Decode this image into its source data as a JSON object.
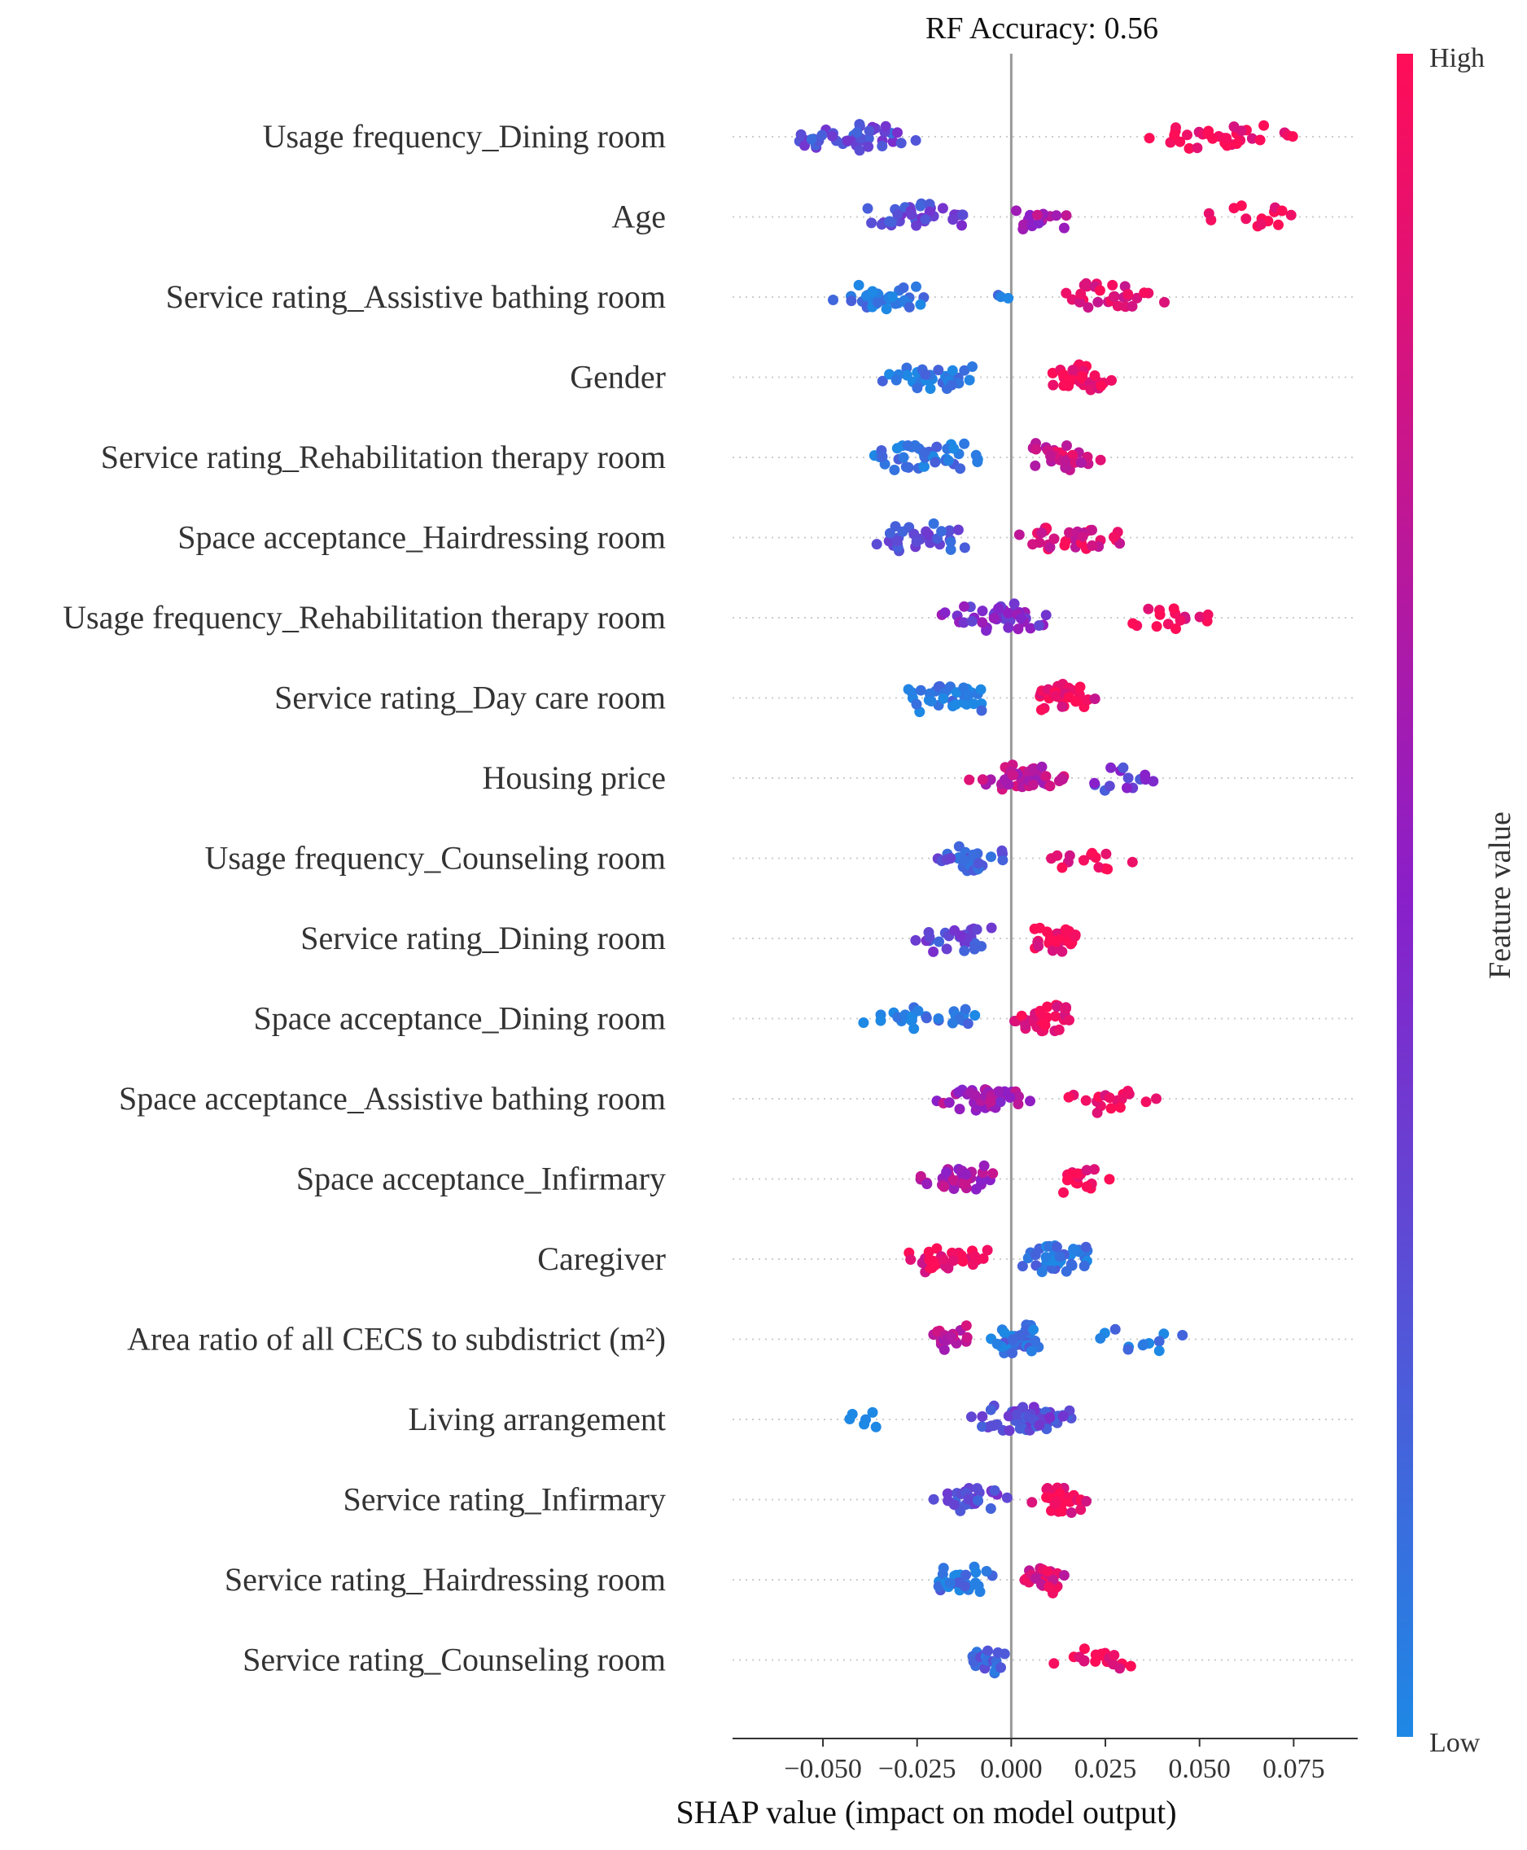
{
  "chart_data": {
    "type": "scatter",
    "subtype": "shap-beeswarm",
    "title": "RF Accuracy: 0.56",
    "xlabel": "SHAP value (impact on model output)",
    "xlim": [
      -0.074,
      0.092
    ],
    "xticks": [
      -0.05,
      -0.025,
      0.0,
      0.025,
      0.05,
      0.075
    ],
    "xtick_labels": [
      "−0.050",
      "−0.025",
      "0.000",
      "0.025",
      "0.050",
      "0.075"
    ],
    "colorbar": {
      "label": "Feature value",
      "high_label": "High",
      "low_label": "Low",
      "low_color": "#1e88e5",
      "high_color": "#ff0d57"
    },
    "features": [
      {
        "name": "Usage frequency_Dining room",
        "clusters": [
          {
            "from": -0.066,
            "to": -0.018,
            "n": 44,
            "level": 0.28
          },
          {
            "from": 0.031,
            "to": 0.079,
            "n": 32,
            "level": 0.95
          }
        ]
      },
      {
        "name": "Age",
        "clusters": [
          {
            "from": -0.044,
            "to": -0.005,
            "n": 38,
            "level": 0.3
          },
          {
            "from": -0.003,
            "to": 0.019,
            "n": 16,
            "level": 0.62
          },
          {
            "from": 0.045,
            "to": 0.086,
            "n": 14,
            "level": 0.96
          }
        ]
      },
      {
        "name": "Service rating_Assistive bathing room",
        "clusters": [
          {
            "from": -0.051,
            "to": -0.018,
            "n": 34,
            "level": 0.06
          },
          {
            "from": -0.004,
            "to": 0.0,
            "n": 3,
            "level": 0.1
          },
          {
            "from": 0.009,
            "to": 0.043,
            "n": 30,
            "level": 0.9
          }
        ]
      },
      {
        "name": "Gender",
        "clusters": [
          {
            "from": -0.037,
            "to": -0.004,
            "n": 34,
            "level": 0.04
          },
          {
            "from": 0.007,
            "to": 0.029,
            "n": 30,
            "level": 0.96
          }
        ]
      },
      {
        "name": "Service rating_Rehabilitation therapy room",
        "clusters": [
          {
            "from": -0.043,
            "to": -0.001,
            "n": 42,
            "level": 0.08
          },
          {
            "from": 0.0,
            "to": 0.026,
            "n": 30,
            "level": 0.8
          }
        ]
      },
      {
        "name": "Space acceptance_Hairdressing room",
        "clusters": [
          {
            "from": -0.044,
            "to": -0.004,
            "n": 32,
            "level": 0.25
          },
          {
            "from": -0.003,
            "to": 0.035,
            "n": 34,
            "level": 0.85
          }
        ]
      },
      {
        "name": "Usage frequency_Rehabilitation therapy room",
        "clusters": [
          {
            "from": -0.021,
            "to": 0.014,
            "n": 44,
            "level": 0.45
          },
          {
            "from": 0.026,
            "to": 0.06,
            "n": 16,
            "level": 0.95
          }
        ]
      },
      {
        "name": "Service rating_Day care room",
        "clusters": [
          {
            "from": -0.034,
            "to": 0.0,
            "n": 36,
            "level": 0.06
          },
          {
            "from": 0.002,
            "to": 0.025,
            "n": 28,
            "level": 0.9
          }
        ]
      },
      {
        "name": "Housing price",
        "clusters": [
          {
            "from": -0.012,
            "to": 0.018,
            "n": 44,
            "level": 0.72
          },
          {
            "from": 0.018,
            "to": 0.042,
            "n": 14,
            "level": 0.35
          }
        ]
      },
      {
        "name": "Usage frequency_Counseling room",
        "clusters": [
          {
            "from": -0.023,
            "to": 0.0,
            "n": 36,
            "level": 0.2
          },
          {
            "from": 0.004,
            "to": 0.035,
            "n": 14,
            "level": 0.92
          }
        ]
      },
      {
        "name": "Service rating_Dining room",
        "clusters": [
          {
            "from": -0.029,
            "to": 0.0,
            "n": 28,
            "level": 0.3
          },
          {
            "from": 0.002,
            "to": 0.021,
            "n": 32,
            "level": 0.95
          }
        ]
      },
      {
        "name": "Space acceptance_Dining room",
        "clusters": [
          {
            "from": -0.041,
            "to": -0.004,
            "n": 26,
            "level": 0.06
          },
          {
            "from": -0.002,
            "to": 0.019,
            "n": 34,
            "level": 0.92
          }
        ]
      },
      {
        "name": "Space acceptance_Assistive bathing room",
        "clusters": [
          {
            "from": -0.021,
            "to": 0.008,
            "n": 42,
            "level": 0.6
          },
          {
            "from": 0.012,
            "to": 0.04,
            "n": 18,
            "level": 0.96
          }
        ]
      },
      {
        "name": "Space acceptance_Infirmary",
        "clusters": [
          {
            "from": -0.027,
            "to": 0.0,
            "n": 36,
            "level": 0.62
          },
          {
            "from": 0.008,
            "to": 0.028,
            "n": 18,
            "level": 0.96
          }
        ]
      },
      {
        "name": "Caregiver",
        "clusters": [
          {
            "from": -0.031,
            "to": -0.002,
            "n": 34,
            "level": 0.9
          },
          {
            "from": -0.001,
            "to": 0.026,
            "n": 40,
            "level": 0.08
          }
        ]
      },
      {
        "name": "Area ratio of all CECS to subdistrict (m²)",
        "clusters": [
          {
            "from": -0.023,
            "to": -0.008,
            "n": 20,
            "level": 0.72
          },
          {
            "from": -0.007,
            "to": 0.011,
            "n": 34,
            "level": 0.1
          },
          {
            "from": 0.017,
            "to": 0.05,
            "n": 12,
            "level": 0.04
          }
        ]
      },
      {
        "name": "Living arrangement",
        "clusters": [
          {
            "from": -0.048,
            "to": -0.029,
            "n": 6,
            "level": 0.02
          },
          {
            "from": -0.014,
            "to": 0.023,
            "n": 58,
            "level": 0.3
          }
        ]
      },
      {
        "name": "Service rating_Infirmary",
        "clusters": [
          {
            "from": -0.022,
            "to": 0.001,
            "n": 30,
            "level": 0.3
          },
          {
            "from": 0.003,
            "to": 0.022,
            "n": 30,
            "level": 0.94
          }
        ]
      },
      {
        "name": "Service rating_Hairdressing room",
        "clusters": [
          {
            "from": -0.024,
            "to": -0.002,
            "n": 30,
            "level": 0.08
          },
          {
            "from": -0.002,
            "to": 0.018,
            "n": 26,
            "level": 0.82
          }
        ]
      },
      {
        "name": "Service rating_Counseling room",
        "clusters": [
          {
            "from": -0.012,
            "to": -0.001,
            "n": 22,
            "level": 0.15
          },
          {
            "from": 0.01,
            "to": 0.036,
            "n": 18,
            "level": 0.96
          }
        ]
      }
    ]
  }
}
